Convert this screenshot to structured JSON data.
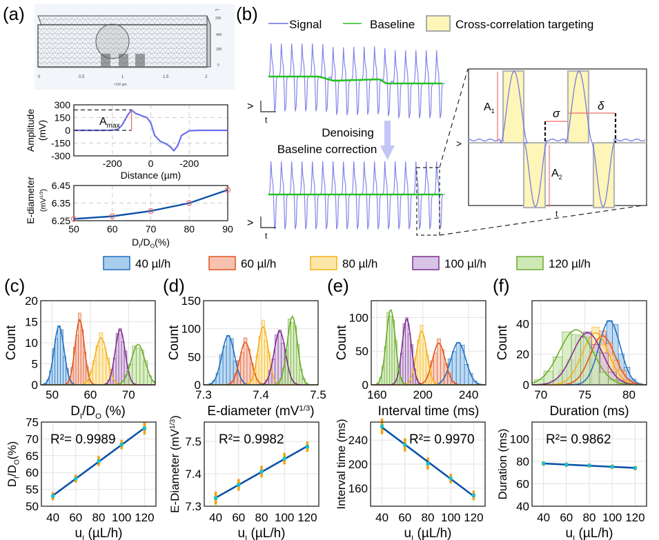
{
  "panel_labels": {
    "a": "(a)",
    "b": "(b)",
    "c": "(c)",
    "d": "(d)",
    "e": "(e)",
    "f": "(f)"
  },
  "colors": {
    "c40": "#1f6fc0",
    "c60": "#e0561f",
    "c80": "#f5b21a",
    "c100": "#7e2f8e",
    "c120": "#6aaa2c",
    "fill40": "#a9cdec",
    "fill60": "#f7c2b0",
    "fill80": "#fce7a8",
    "fill100": "#d8c4e6",
    "fill120": "#cde8b5",
    "signal": "#6b6ee8",
    "baseline": "#22c022",
    "highlight": "#fdf6b8",
    "fit": "#0a52a8",
    "errbar": "#f5a00a",
    "point": "#19c3c8",
    "annot": "#f06a6a"
  },
  "mesh": {
    "x_ticks": [
      "0",
      "0.5",
      "1",
      "1.5",
      "2"
    ],
    "x_label": "×10³ µm",
    "z_ticks": [
      "200",
      "400",
      "200",
      "0"
    ],
    "unit": "µm"
  },
  "legend_b": {
    "signal": "Signal",
    "baseline": "Baseline",
    "targeting": "Cross-correlation targeting"
  },
  "b_labels": {
    "v": ">",
    "t": "t",
    "process_line1": "Denoising",
    "process_line2": "Baseline correction",
    "A1": "A",
    "A1_sub": "1",
    "A2": "A",
    "A2_sub": "2",
    "sigma": "σ",
    "delta": "δ"
  },
  "legend_flow": [
    {
      "label": "40 µl/h",
      "key": "40"
    },
    {
      "label": "60 µl/h",
      "key": "60"
    },
    {
      "label": "80 µl/h",
      "key": "80"
    },
    {
      "label": "100 µl/h",
      "key": "100"
    },
    {
      "label": "120 µl/h",
      "key": "120"
    }
  ],
  "chart_data": [
    {
      "id": "a-amplitude",
      "type": "line",
      "xlabel": "Distance (µm)",
      "ylabel": "Amplitude\n(mV)",
      "x_ticks": [
        "-200",
        "0",
        "-200"
      ],
      "y_ticks": [
        "300",
        "150",
        "0",
        "-150",
        "-300"
      ],
      "ylim": [
        -300,
        300
      ],
      "grid": true,
      "annotation": {
        "text": "A",
        "sub": "max",
        "peak_value": 240
      },
      "series": [
        {
          "name": "Signal",
          "x": [
            -400,
            -250,
            -200,
            -170,
            -150,
            -120,
            -100,
            -80,
            -50,
            -20,
            0,
            20,
            50,
            80,
            100,
            120,
            140,
            160,
            200,
            250,
            400
          ],
          "y": [
            0,
            0,
            2,
            15,
            60,
            180,
            240,
            200,
            175,
            150,
            90,
            -60,
            -130,
            -160,
            -190,
            -240,
            -180,
            -60,
            -5,
            0,
            0
          ]
        }
      ]
    },
    {
      "id": "a-ediameter",
      "type": "line",
      "xlabel": "DI/DO(%)",
      "ylabel": "E-diameter\n(mV1/3)",
      "x_ticks": [
        "50",
        "60",
        "70",
        "80",
        "90"
      ],
      "y_ticks": [
        "6.45",
        "6.35",
        "6.25"
      ],
      "ylim": [
        6.25,
        6.45
      ],
      "xlim": [
        50,
        90
      ],
      "grid": true,
      "series": [
        {
          "name": "E-diameter",
          "x": [
            50,
            60,
            70,
            80,
            90
          ],
          "y": [
            6.26,
            6.275,
            6.305,
            6.35,
            6.425
          ]
        }
      ]
    },
    {
      "id": "c-hist",
      "type": "histogram",
      "xlabel": "DI/DO (%)",
      "ylabel": "Count",
      "x_ticks": [
        "50",
        "60",
        "70"
      ],
      "y_ticks": [
        "20",
        "15",
        "10",
        "5",
        "0"
      ],
      "xlim": [
        47,
        77
      ],
      "ylim": [
        0,
        20
      ],
      "series": [
        {
          "name": "40 µl/h",
          "mean": 51.8,
          "sd": 1.3,
          "peak": 14
        },
        {
          "name": "60 µl/h",
          "mean": 57.2,
          "sd": 1.2,
          "peak": 15.5
        },
        {
          "name": "80 µl/h",
          "mean": 62.8,
          "sd": 1.6,
          "peak": 11.2
        },
        {
          "name": "100 µl/h",
          "mean": 67.8,
          "sd": 1.3,
          "peak": 13.2
        },
        {
          "name": "120 µl/h",
          "mean": 72.5,
          "sd": 1.8,
          "peak": 9.6
        }
      ]
    },
    {
      "id": "c-fit",
      "type": "scatter",
      "xlabel": "uI (µL/h)",
      "ylabel": "DI/DO(%)",
      "r2": "R²= 0.9989",
      "x_ticks": [
        "40",
        "60",
        "80",
        "100",
        "120"
      ],
      "y_ticks": [
        "75",
        "70",
        "65",
        "60",
        "55",
        "50"
      ],
      "xlim": [
        30,
        130
      ],
      "ylim": [
        50,
        75
      ],
      "x": [
        40,
        60,
        80,
        100,
        120
      ],
      "y": [
        53,
        58.2,
        63.4,
        68.3,
        73.1
      ],
      "err": [
        1.2,
        1.2,
        1.5,
        1.4,
        1.8
      ]
    },
    {
      "id": "d-hist",
      "type": "histogram",
      "xlabel": "E-diameter (mV1/3)",
      "ylabel": "Count",
      "x_ticks": [
        "7.3",
        "7.4",
        "7.5"
      ],
      "y_ticks": [
        "150",
        "100",
        "50",
        "0"
      ],
      "xlim": [
        7.3,
        7.5
      ],
      "ylim": [
        0,
        150
      ],
      "series": [
        {
          "name": "40 µl/h",
          "mean": 7.343,
          "sd": 0.011,
          "peak": 88
        },
        {
          "name": "60 µl/h",
          "mean": 7.373,
          "sd": 0.01,
          "peak": 76
        },
        {
          "name": "80 µl/h",
          "mean": 7.404,
          "sd": 0.009,
          "peak": 104
        },
        {
          "name": "100 µl/h",
          "mean": 7.433,
          "sd": 0.01,
          "peak": 96
        },
        {
          "name": "120 µl/h",
          "mean": 7.455,
          "sd": 0.009,
          "peak": 122
        }
      ]
    },
    {
      "id": "d-fit",
      "type": "scatter",
      "xlabel": "uI (µL/h)",
      "ylabel": "E-Diameter (mV1/3)",
      "r2": "R²= 0.9982",
      "x_ticks": [
        "40",
        "60",
        "80",
        "100",
        "120"
      ],
      "y_ticks": [
        "7.5",
        "7.4",
        "7.3"
      ],
      "xlim": [
        30,
        130
      ],
      "ylim": [
        7.3,
        7.56
      ],
      "x": [
        40,
        60,
        80,
        100,
        120
      ],
      "y": [
        7.325,
        7.366,
        7.407,
        7.447,
        7.484
      ],
      "err": [
        0.02,
        0.018,
        0.018,
        0.018,
        0.016
      ]
    },
    {
      "id": "e-hist",
      "type": "histogram",
      "xlabel": "Interval time (ms)",
      "ylabel": "Count",
      "x_ticks": [
        "160",
        "200",
        "240"
      ],
      "y_ticks": [
        "100",
        "50",
        "0"
      ],
      "xlim": [
        155,
        255
      ],
      "ylim": [
        0,
        125
      ],
      "series": [
        {
          "name": "40 µl/h",
          "mean": 231,
          "sd": 6.5,
          "peak": 63
        },
        {
          "name": "60 µl/h",
          "mean": 214,
          "sd": 5.5,
          "peak": 62
        },
        {
          "name": "80 µl/h",
          "mean": 199,
          "sd": 4.5,
          "peak": 80
        },
        {
          "name": "100 µl/h",
          "mean": 186,
          "sd": 4,
          "peak": 98
        },
        {
          "name": "120 µl/h",
          "mean": 172,
          "sd": 4,
          "peak": 112
        }
      ]
    },
    {
      "id": "e-fit",
      "type": "scatter",
      "xlabel": "uI (µL/h)",
      "ylabel": "Interval time (ms)",
      "r2": "R²= 0.9970",
      "x_ticks": [
        "40",
        "60",
        "80",
        "100",
        "120"
      ],
      "y_ticks": [
        "240",
        "200",
        "160"
      ],
      "xlim": [
        30,
        130
      ],
      "ylim": [
        130,
        270
      ],
      "x": [
        40,
        60,
        80,
        100,
        120
      ],
      "y": [
        263,
        232,
        201,
        176,
        148
      ],
      "err": [
        13,
        11,
        10,
        8,
        8
      ]
    },
    {
      "id": "f-hist",
      "type": "histogram",
      "xlabel": "Duration (ms)",
      "ylabel": "Count",
      "x_ticks": [
        "70",
        "75",
        "80"
      ],
      "y_ticks": [
        "40",
        "20",
        "0"
      ],
      "xlim": [
        69,
        82
      ],
      "ylim": [
        0,
        55
      ],
      "series": [
        {
          "name": "40 µl/h",
          "mean": 77.8,
          "sd": 1.2,
          "peak": 42
        },
        {
          "name": "60 µl/h",
          "mean": 77,
          "sd": 1.4,
          "peak": 32
        },
        {
          "name": "80 µl/h",
          "mean": 76.2,
          "sd": 1.5,
          "peak": 34
        },
        {
          "name": "100 µl/h",
          "mean": 75.3,
          "sd": 1.7,
          "peak": 34
        },
        {
          "name": "120 µl/h",
          "mean": 74,
          "sd": 1.9,
          "peak": 36
        }
      ]
    },
    {
      "id": "f-fit",
      "type": "scatter",
      "xlabel": "uI (µL/h)",
      "ylabel": "Duration (ms)",
      "r2": "R²= 0.9862",
      "x_ticks": [
        "40",
        "60",
        "80",
        "100",
        "120"
      ],
      "y_ticks": [
        "100",
        "80",
        "60",
        "40"
      ],
      "xlim": [
        30,
        130
      ],
      "ylim": [
        40,
        115
      ],
      "x": [
        40,
        60,
        80,
        100,
        120
      ],
      "y": [
        78,
        77,
        76.3,
        75.2,
        74
      ],
      "err": [
        2,
        2,
        2,
        2,
        2
      ]
    }
  ]
}
